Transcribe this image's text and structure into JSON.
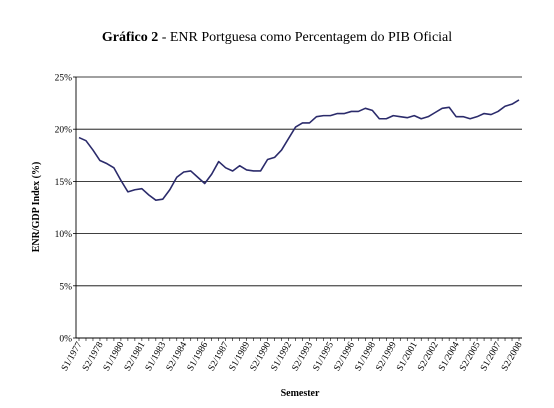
{
  "chart_data": {
    "type": "line",
    "title_prefix": "Gráfico 2",
    "title_rest": " - ENR Portguesa como Percentagem do PIB Oficial",
    "xlabel": "Semester",
    "ylabel": "ENR/GDP Index (%)",
    "ylim": [
      0,
      25
    ],
    "yticks": [
      "0%",
      "5%",
      "10%",
      "15%",
      "20%",
      "25%"
    ],
    "grid": "horizontal",
    "x": [
      "S1/1977",
      "S2/1977",
      "S1/1978",
      "S2/1978",
      "S1/1979",
      "S2/1979",
      "S1/1980",
      "S2/1980",
      "S1/1981",
      "S2/1981",
      "S1/1982",
      "S2/1982",
      "S1/1983",
      "S2/1983",
      "S1/1984",
      "S2/1984",
      "S1/1985",
      "S2/1985",
      "S1/1986",
      "S2/1986",
      "S1/1987",
      "S2/1987",
      "S1/1988",
      "S2/1988",
      "S1/1989",
      "S2/1989",
      "S1/1990",
      "S2/1990",
      "S1/1991",
      "S2/1991",
      "S1/1992",
      "S2/1992",
      "S1/1993",
      "S2/1993",
      "S1/1994",
      "S2/1994",
      "S1/1995",
      "S2/1995",
      "S1/1996",
      "S2/1996",
      "S1/1997",
      "S2/1997",
      "S1/1998",
      "S2/1998",
      "S1/1999",
      "S2/1999",
      "S1/2000",
      "S2/2000",
      "S1/2001",
      "S2/2001",
      "S1/2002",
      "S2/2002",
      "S1/2003",
      "S2/2003",
      "S1/2004",
      "S2/2004",
      "S1/2005",
      "S2/2005",
      "S1/2006",
      "S2/2006",
      "S1/2007",
      "S2/2007",
      "S1/2008",
      "S2/2008"
    ],
    "xtick_labels": [
      "S1/1977",
      "S2/1978",
      "S1/1980",
      "S2/1981",
      "S1/1983",
      "S2/1984",
      "S1/1986",
      "S2/1987",
      "S1/1989",
      "S2/1990",
      "S1/1992",
      "S2/1993",
      "S1/1995",
      "S2/1996",
      "S1/1998",
      "S2/1999",
      "S1/2001",
      "S2/2002",
      "S1/2004",
      "S2/2005",
      "S1/2007",
      "S2/2008"
    ],
    "series": [
      {
        "color": "#2b2b6b",
        "values": [
          19.2,
          18.9,
          18.0,
          17.0,
          16.7,
          16.3,
          15.1,
          14.0,
          14.2,
          14.3,
          13.7,
          13.2,
          13.3,
          14.2,
          15.4,
          15.9,
          16.0,
          15.4,
          14.8,
          15.7,
          16.9,
          16.3,
          16.0,
          16.5,
          16.1,
          16.0,
          16.0,
          17.1,
          17.3,
          18.0,
          19.1,
          20.2,
          20.6,
          20.6,
          21.2,
          21.3,
          21.3,
          21.5,
          21.5,
          21.7,
          21.7,
          22.0,
          21.8,
          21.0,
          21.0,
          21.3,
          21.2,
          21.1,
          21.3,
          21.0,
          21.2,
          21.6,
          22.0,
          22.1,
          21.2,
          21.2,
          21.0,
          21.2,
          21.5,
          21.4,
          21.7,
          22.2,
          22.4,
          22.8
        ]
      }
    ]
  }
}
